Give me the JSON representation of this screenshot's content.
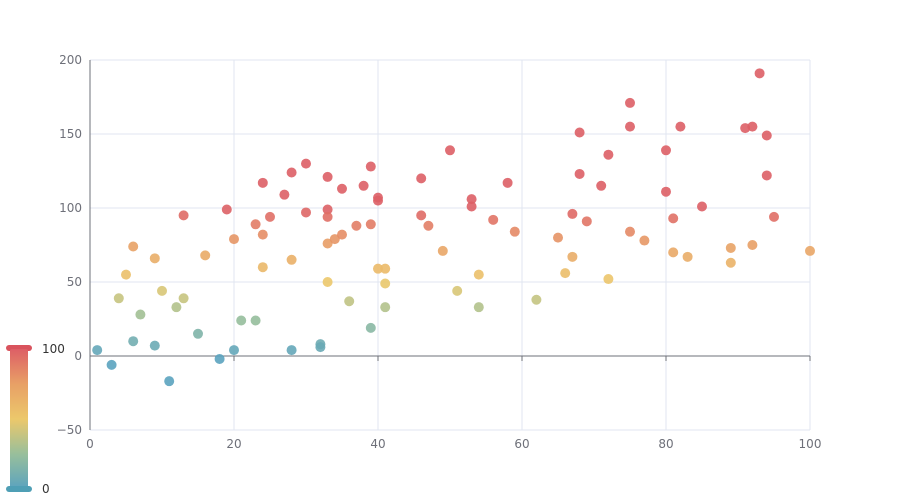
{
  "chart_data": {
    "type": "scatter",
    "title": "",
    "xlabel": "",
    "ylabel": "",
    "xlim": [
      0,
      100
    ],
    "ylim": [
      -50,
      200
    ],
    "x_ticks": [
      0,
      20,
      40,
      60,
      80,
      100
    ],
    "y_ticks": [
      -50,
      0,
      50,
      100,
      150,
      200
    ],
    "x_tick_labels": [
      "0",
      "20",
      "40",
      "60",
      "80",
      "100"
    ],
    "y_tick_labels": [
      "−50",
      "0",
      "50",
      "100",
      "150",
      "200"
    ],
    "grid": true,
    "visual_map": {
      "type": "continuous",
      "dimension": "y",
      "min": 0,
      "max": 100,
      "min_label": "0",
      "max_label": "100",
      "placement": "bottom-left",
      "colors": [
        "#5ba3bf",
        "#98bf9b",
        "#ecc86b",
        "#e8a066",
        "#dd5f66"
      ]
    },
    "points": [
      {
        "x": 1,
        "y": 4
      },
      {
        "x": 3,
        "y": -6
      },
      {
        "x": 4,
        "y": 39
      },
      {
        "x": 5,
        "y": 55
      },
      {
        "x": 6,
        "y": 74
      },
      {
        "x": 6,
        "y": 10
      },
      {
        "x": 7,
        "y": 28
      },
      {
        "x": 9,
        "y": 66
      },
      {
        "x": 9,
        "y": 7
      },
      {
        "x": 10,
        "y": 44
      },
      {
        "x": 11,
        "y": -17
      },
      {
        "x": 12,
        "y": 33
      },
      {
        "x": 13,
        "y": 95
      },
      {
        "x": 13,
        "y": 39
      },
      {
        "x": 15,
        "y": 15
      },
      {
        "x": 16,
        "y": 68
      },
      {
        "x": 18,
        "y": -2
      },
      {
        "x": 19,
        "y": 99
      },
      {
        "x": 20,
        "y": 79
      },
      {
        "x": 20,
        "y": 4
      },
      {
        "x": 21,
        "y": 24
      },
      {
        "x": 23,
        "y": 89
      },
      {
        "x": 23,
        "y": 24
      },
      {
        "x": 24,
        "y": 117
      },
      {
        "x": 24,
        "y": 82
      },
      {
        "x": 24,
        "y": 60
      },
      {
        "x": 25,
        "y": 94
      },
      {
        "x": 27,
        "y": 109
      },
      {
        "x": 28,
        "y": 124
      },
      {
        "x": 28,
        "y": 65
      },
      {
        "x": 28,
        "y": 4
      },
      {
        "x": 30,
        "y": 130
      },
      {
        "x": 30,
        "y": 97
      },
      {
        "x": 32,
        "y": 8
      },
      {
        "x": 32,
        "y": 6
      },
      {
        "x": 33,
        "y": 121
      },
      {
        "x": 33,
        "y": 99
      },
      {
        "x": 33,
        "y": 94
      },
      {
        "x": 33,
        "y": 76
      },
      {
        "x": 33,
        "y": 50
      },
      {
        "x": 34,
        "y": 79
      },
      {
        "x": 35,
        "y": 113
      },
      {
        "x": 35,
        "y": 82
      },
      {
        "x": 36,
        "y": 37
      },
      {
        "x": 37,
        "y": 88
      },
      {
        "x": 38,
        "y": 115
      },
      {
        "x": 39,
        "y": 128
      },
      {
        "x": 39,
        "y": 89
      },
      {
        "x": 39,
        "y": 19
      },
      {
        "x": 40,
        "y": 107
      },
      {
        "x": 40,
        "y": 105
      },
      {
        "x": 40,
        "y": 59
      },
      {
        "x": 41,
        "y": 59
      },
      {
        "x": 41,
        "y": 49
      },
      {
        "x": 41,
        "y": 33
      },
      {
        "x": 46,
        "y": 120
      },
      {
        "x": 46,
        "y": 95
      },
      {
        "x": 47,
        "y": 88
      },
      {
        "x": 49,
        "y": 71
      },
      {
        "x": 50,
        "y": 139
      },
      {
        "x": 51,
        "y": 44
      },
      {
        "x": 53,
        "y": 106
      },
      {
        "x": 53,
        "y": 101
      },
      {
        "x": 54,
        "y": 55
      },
      {
        "x": 54,
        "y": 33
      },
      {
        "x": 56,
        "y": 92
      },
      {
        "x": 58,
        "y": 117
      },
      {
        "x": 59,
        "y": 84
      },
      {
        "x": 62,
        "y": 38
      },
      {
        "x": 65,
        "y": 80
      },
      {
        "x": 66,
        "y": 56
      },
      {
        "x": 67,
        "y": 96
      },
      {
        "x": 67,
        "y": 67
      },
      {
        "x": 68,
        "y": 151
      },
      {
        "x": 68,
        "y": 123
      },
      {
        "x": 69,
        "y": 91
      },
      {
        "x": 71,
        "y": 115
      },
      {
        "x": 72,
        "y": 136
      },
      {
        "x": 72,
        "y": 52
      },
      {
        "x": 75,
        "y": 171
      },
      {
        "x": 75,
        "y": 155
      },
      {
        "x": 75,
        "y": 84
      },
      {
        "x": 77,
        "y": 78
      },
      {
        "x": 80,
        "y": 139
      },
      {
        "x": 80,
        "y": 111
      },
      {
        "x": 81,
        "y": 93
      },
      {
        "x": 81,
        "y": 70
      },
      {
        "x": 82,
        "y": 155
      },
      {
        "x": 83,
        "y": 67
      },
      {
        "x": 85,
        "y": 101
      },
      {
        "x": 89,
        "y": 73
      },
      {
        "x": 89,
        "y": 63
      },
      {
        "x": 91,
        "y": 154
      },
      {
        "x": 92,
        "y": 155
      },
      {
        "x": 92,
        "y": 75
      },
      {
        "x": 93,
        "y": 191
      },
      {
        "x": 94,
        "y": 149
      },
      {
        "x": 94,
        "y": 122
      },
      {
        "x": 95,
        "y": 94
      },
      {
        "x": 100,
        "y": 71
      }
    ]
  }
}
